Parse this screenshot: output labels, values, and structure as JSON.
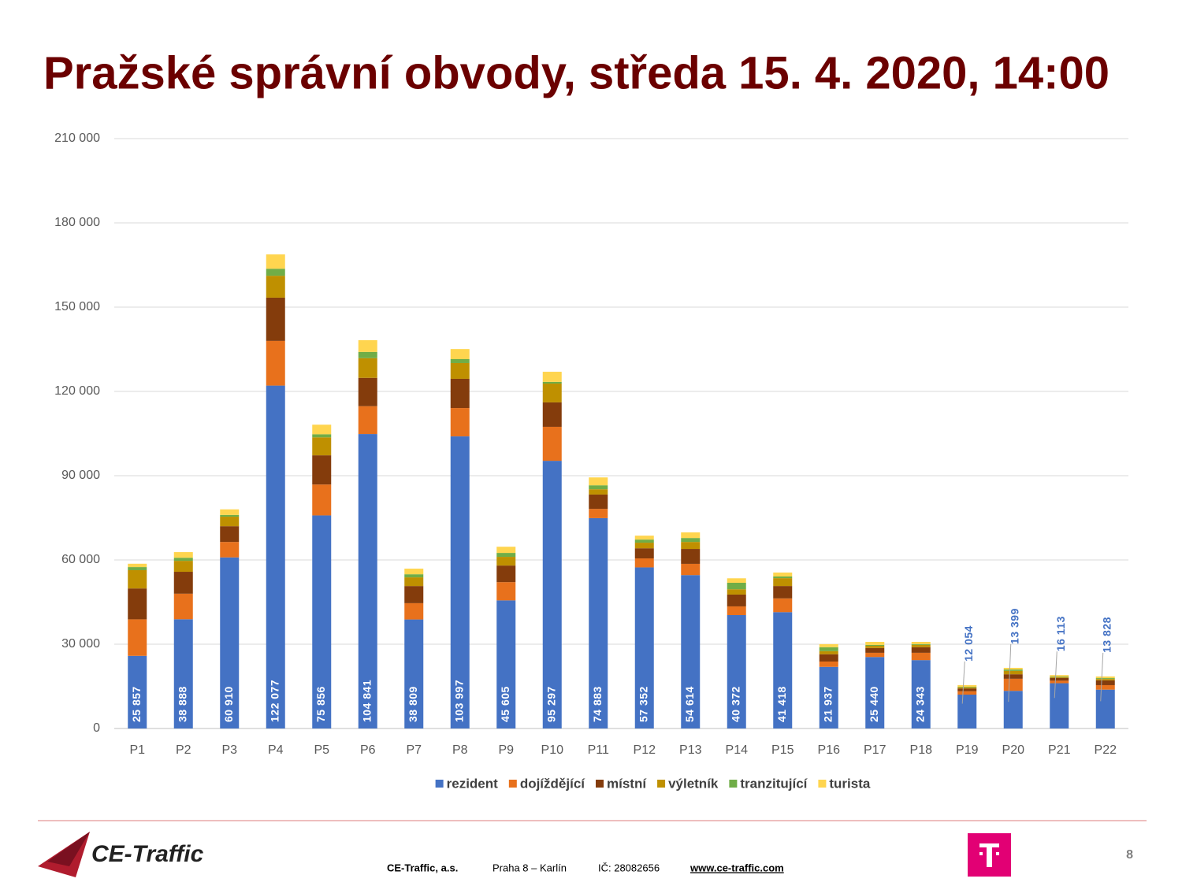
{
  "title": "Pražské správní obvody, středa 15. 4. 2020, 14:00",
  "chart_data": {
    "type": "stacked_bar",
    "categories": [
      "P1",
      "P2",
      "P3",
      "P4",
      "P5",
      "P6",
      "P7",
      "P8",
      "P9",
      "P10",
      "P11",
      "P12",
      "P13",
      "P14",
      "P15",
      "P16",
      "P17",
      "P18",
      "P19",
      "P20",
      "P21",
      "P22"
    ],
    "series": [
      {
        "name": "rezident",
        "color": "#4472c4",
        "values": [
          25857,
          38888,
          60910,
          122077,
          75856,
          104841,
          38809,
          103997,
          45605,
          95297,
          74883,
          57352,
          54614,
          40372,
          41418,
          21937,
          25440,
          24343,
          12054,
          13399,
          16113,
          13828
        ],
        "value_labels": [
          "25 857",
          "38 888",
          "60 910",
          "122 077",
          "75 856",
          "104 841",
          "38 809",
          "103 997",
          "45 605",
          "95 297",
          "74 883",
          "57 352",
          "54 614",
          "40 372",
          "41 418",
          "21 937",
          "25 440",
          "24 343",
          "12 054",
          "13 399",
          "16 113",
          "13 828"
        ]
      },
      {
        "name": "dojíždějící",
        "color": "#e8711c",
        "values": [
          13000,
          9100,
          5500,
          15900,
          11000,
          9900,
          5800,
          10100,
          6500,
          12100,
          3300,
          3200,
          4000,
          3100,
          4900,
          1900,
          1500,
          2600,
          1200,
          4300,
          900,
          1600
        ]
      },
      {
        "name": "místní",
        "color": "#843c0c",
        "values": [
          11000,
          7800,
          5600,
          15400,
          10400,
          10100,
          6100,
          10400,
          5900,
          8700,
          5100,
          3600,
          5300,
          4200,
          4400,
          2600,
          1700,
          2000,
          1000,
          1600,
          1000,
          1700
        ]
      },
      {
        "name": "výletník",
        "color": "#bf9000",
        "values": [
          6500,
          3900,
          3400,
          7800,
          6400,
          7000,
          3100,
          5600,
          3100,
          6700,
          1900,
          2000,
          2500,
          1900,
          2800,
          1100,
          800,
          800,
          400,
          1200,
          300,
          500
        ]
      },
      {
        "name": "tranzitující",
        "color": "#70ad47",
        "values": [
          1100,
          1100,
          600,
          2500,
          1100,
          2200,
          1100,
          1400,
          1400,
          600,
          1400,
          1100,
          1400,
          2300,
          600,
          1400,
          300,
          300,
          200,
          500,
          200,
          300
        ]
      },
      {
        "name": "turista",
        "color": "#ffd54f",
        "values": [
          1200,
          2000,
          2000,
          5100,
          3400,
          4200,
          2000,
          3600,
          2200,
          3600,
          2800,
          1400,
          2000,
          1600,
          1400,
          1100,
          1100,
          800,
          600,
          600,
          500,
          600
        ]
      }
    ],
    "ylim": [
      0,
      210000
    ],
    "yticks": [
      0,
      {
        "value": 30000,
        "label": "30 000"
      },
      {
        "value": 60000,
        "label": "60 000"
      },
      {
        "value": 90000,
        "label": "90 000"
      },
      {
        "value": 120000,
        "label": "120 000"
      },
      {
        "value": 150000,
        "label": "150 000"
      },
      {
        "value": 180000,
        "label": "180 000"
      },
      {
        "value": 210000,
        "label": "210 000"
      }
    ],
    "grid": true,
    "legend": "bottom"
  },
  "footer": {
    "logo": "CE-Traffic",
    "company": "CE-Traffic, a.s.",
    "address": "Praha 8 – Karlín",
    "id": "IČ: 28082656",
    "web": "www.ce-traffic.com",
    "page": "8"
  }
}
